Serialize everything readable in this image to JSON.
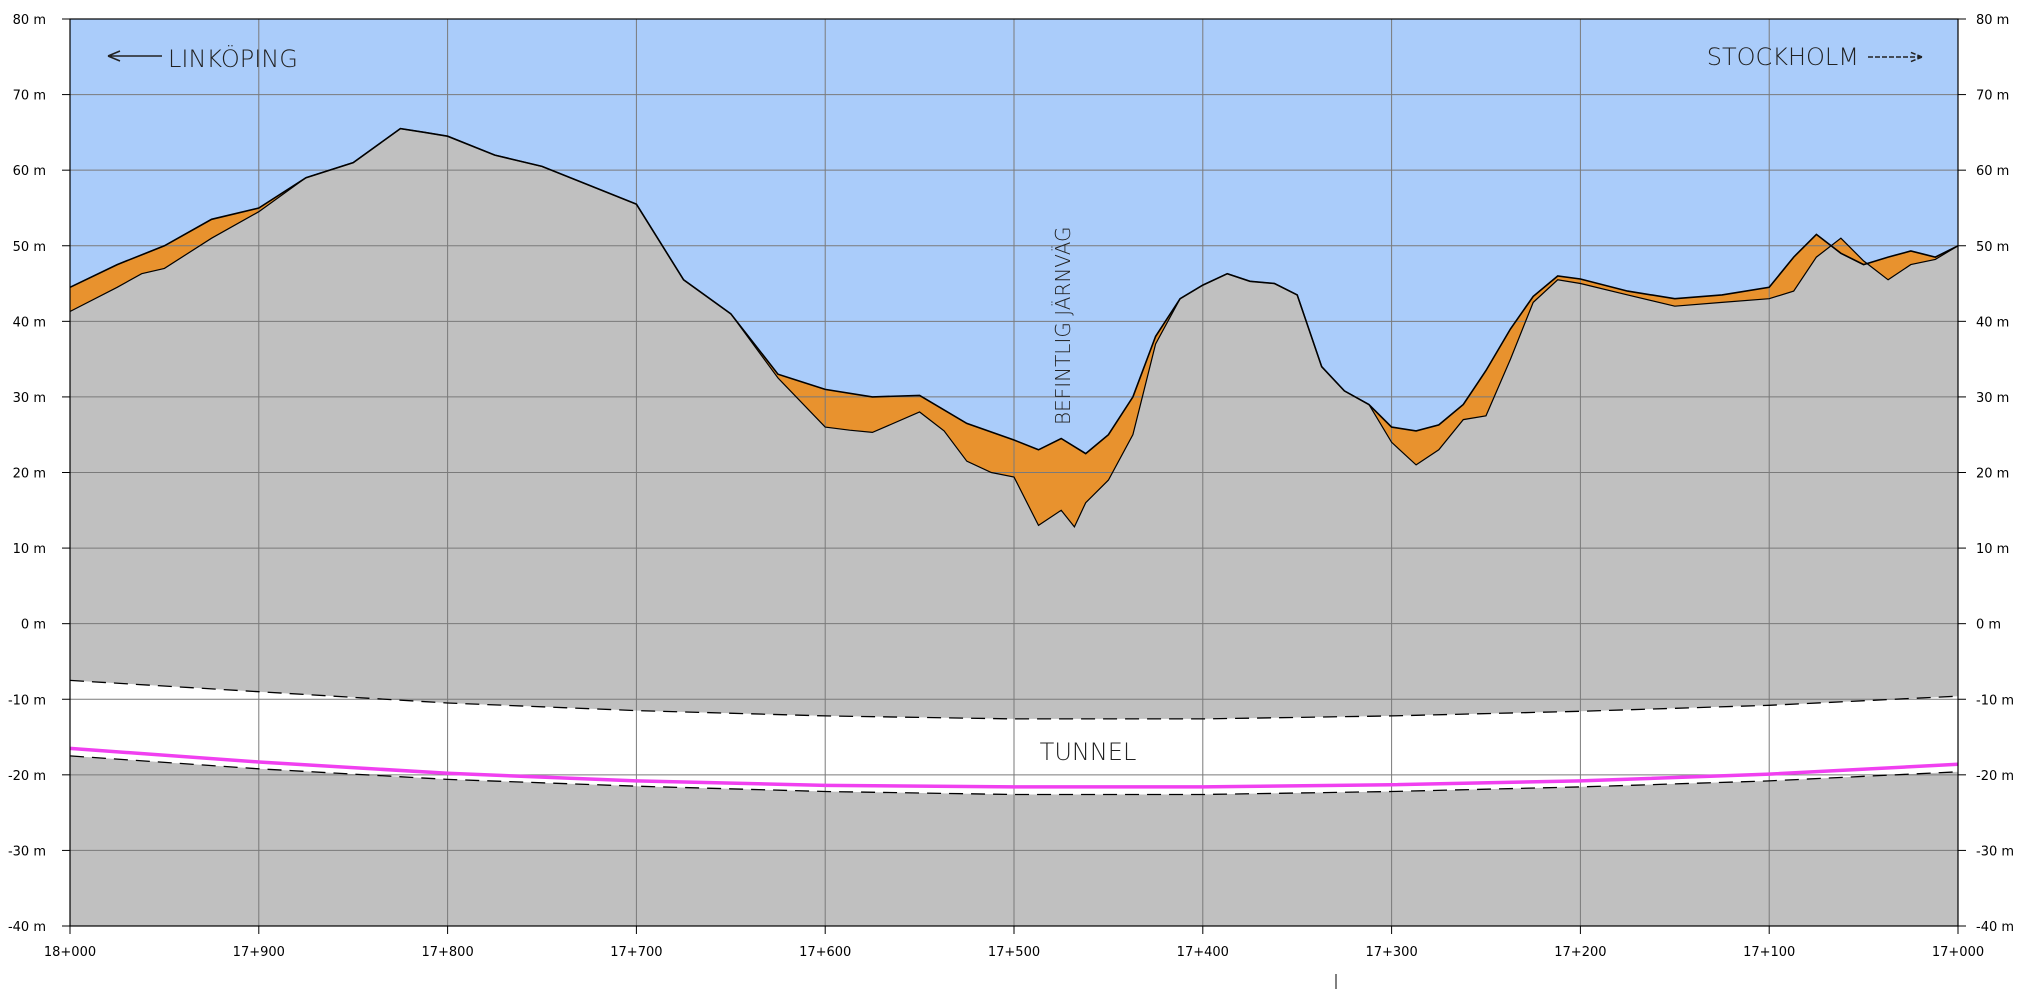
{
  "labels": {
    "left_direction": "LINKÖPING",
    "right_direction": "STOCKHOLM",
    "railway": "BEFINTLIG JÄRNVÄG",
    "tunnel": "TUNNEL"
  },
  "colors": {
    "sky": "#aaccfa",
    "ground": "#c0c0c0",
    "fill_material": "#e8922e",
    "tunnel": "#ffffff",
    "grid": "#7a7a7a",
    "alignment_line": "#f040f0",
    "outline": "#000000"
  },
  "chart_data": {
    "type": "area",
    "title": "",
    "xlabel": "",
    "ylabel": "",
    "y_unit": "m",
    "xlim": [
      18000,
      17000
    ],
    "ylim": [
      -40,
      80
    ],
    "x_ticks": [
      {
        "value": 18000,
        "label": "18+000"
      },
      {
        "value": 17900,
        "label": "17+900"
      },
      {
        "value": 17800,
        "label": "17+800"
      },
      {
        "value": 17700,
        "label": "17+700"
      },
      {
        "value": 17600,
        "label": "17+600"
      },
      {
        "value": 17500,
        "label": "17+500"
      },
      {
        "value": 17400,
        "label": "17+400"
      },
      {
        "value": 17300,
        "label": "17+300"
      },
      {
        "value": 17200,
        "label": "17+200"
      },
      {
        "value": 17100,
        "label": "17+100"
      },
      {
        "value": 17000,
        "label": "17+000"
      }
    ],
    "y_ticks": [
      {
        "value": 80,
        "label": "80 m"
      },
      {
        "value": 70,
        "label": "70 m"
      },
      {
        "value": 60,
        "label": "60 m"
      },
      {
        "value": 50,
        "label": "50 m"
      },
      {
        "value": 40,
        "label": "40 m"
      },
      {
        "value": 30,
        "label": "30 m"
      },
      {
        "value": 20,
        "label": "20 m"
      },
      {
        "value": 10,
        "label": "10 m"
      },
      {
        "value": 0,
        "label": "0 m"
      },
      {
        "value": -10,
        "label": "-10 m"
      },
      {
        "value": -20,
        "label": "-20 m"
      },
      {
        "value": -30,
        "label": "-30 m"
      },
      {
        "value": -40,
        "label": "-40 m"
      }
    ],
    "grid": true,
    "series": [
      {
        "key": "ground_surface",
        "color": "#000000",
        "x": [
          18000,
          17975,
          17950,
          17925,
          17900,
          17875,
          17850,
          17825,
          17812,
          17800,
          17775,
          17750,
          17725,
          17700,
          17675,
          17650,
          17625,
          17600,
          17575,
          17550,
          17525,
          17500,
          17487,
          17475,
          17462,
          17450,
          17437,
          17425,
          17412,
          17400,
          17387,
          17375,
          17362,
          17350,
          17337,
          17325,
          17312,
          17300,
          17287,
          17275,
          17262,
          17250,
          17237,
          17225,
          17212,
          17200,
          17175,
          17150,
          17125,
          17100,
          17087,
          17075,
          17062,
          17050,
          17037,
          17025,
          17012,
          17000
        ],
        "y": [
          44.5,
          47.5,
          50,
          53.5,
          55,
          59,
          61,
          65.5,
          65,
          64.5,
          62,
          60.5,
          58,
          55.5,
          45.5,
          41,
          33,
          31,
          30,
          30.2,
          26.5,
          24.3,
          23,
          24.5,
          22.5,
          25,
          30,
          38,
          43,
          44.8,
          46.3,
          45.3,
          45,
          43.5,
          34,
          30.8,
          29,
          26,
          25.5,
          26.3,
          29,
          33.5,
          39,
          43.3,
          46,
          45.6,
          44,
          43,
          43.5,
          44.5,
          48.5,
          51.5,
          49,
          47.5,
          48.5,
          49.3,
          48.5,
          50
        ]
      },
      {
        "key": "bedrock_surface",
        "color": "#000000",
        "x": [
          18000,
          17975,
          17962,
          17950,
          17925,
          17900,
          17875,
          17850,
          17825,
          17812,
          17800,
          17775,
          17750,
          17725,
          17700,
          17675,
          17650,
          17625,
          17600,
          17587,
          17575,
          17550,
          17537,
          17525,
          17512,
          17500,
          17487,
          17475,
          17468,
          17462,
          17450,
          17437,
          17425,
          17412,
          17400,
          17387,
          17375,
          17362,
          17350,
          17337,
          17325,
          17312,
          17300,
          17287,
          17275,
          17262,
          17250,
          17237,
          17225,
          17212,
          17200,
          17175,
          17150,
          17125,
          17100,
          17087,
          17075,
          17062,
          17050,
          17037,
          17025,
          17012,
          17000
        ],
        "y": [
          41.3,
          44.5,
          46.3,
          47,
          51,
          54.5,
          59,
          61,
          65.5,
          65,
          64.5,
          62,
          60.5,
          58,
          55.5,
          45.5,
          41,
          32.5,
          26,
          25.6,
          25.3,
          28,
          25.5,
          21.5,
          20,
          19.4,
          13,
          15,
          12.8,
          16,
          19,
          25,
          37,
          43,
          44.8,
          46.3,
          45.3,
          45,
          43.5,
          34,
          30.8,
          29,
          24,
          21,
          23,
          27,
          27.5,
          35,
          42.5,
          45.5,
          45,
          43.5,
          42,
          42.5,
          43,
          44,
          48.5,
          51,
          48,
          45.5,
          47.5,
          48.2,
          50
        ]
      },
      {
        "key": "tunnel_top",
        "color": "#000000",
        "x": [
          18000,
          17900,
          17800,
          17700,
          17600,
          17500,
          17400,
          17300,
          17200,
          17100,
          17000
        ],
        "y": [
          -7.5,
          -9,
          -10.5,
          -11.5,
          -12.2,
          -12.6,
          -12.6,
          -12.2,
          -11.6,
          -10.8,
          -9.6
        ]
      },
      {
        "key": "tunnel_bottom",
        "color": "#000000",
        "x": [
          18000,
          17900,
          17800,
          17700,
          17600,
          17500,
          17400,
          17300,
          17200,
          17100,
          17000
        ],
        "y": [
          -17.5,
          -19.2,
          -20.6,
          -21.5,
          -22.2,
          -22.6,
          -22.6,
          -22.2,
          -21.6,
          -20.8,
          -19.6
        ]
      },
      {
        "key": "alignment",
        "color": "#f040f0",
        "x": [
          18000,
          17900,
          17800,
          17700,
          17600,
          17500,
          17400,
          17300,
          17200,
          17100,
          17000
        ],
        "y": [
          -16.5,
          -18.3,
          -19.8,
          -20.8,
          -21.4,
          -21.6,
          -21.6,
          -21.3,
          -20.8,
          -19.9,
          -18.6
        ]
      }
    ]
  }
}
